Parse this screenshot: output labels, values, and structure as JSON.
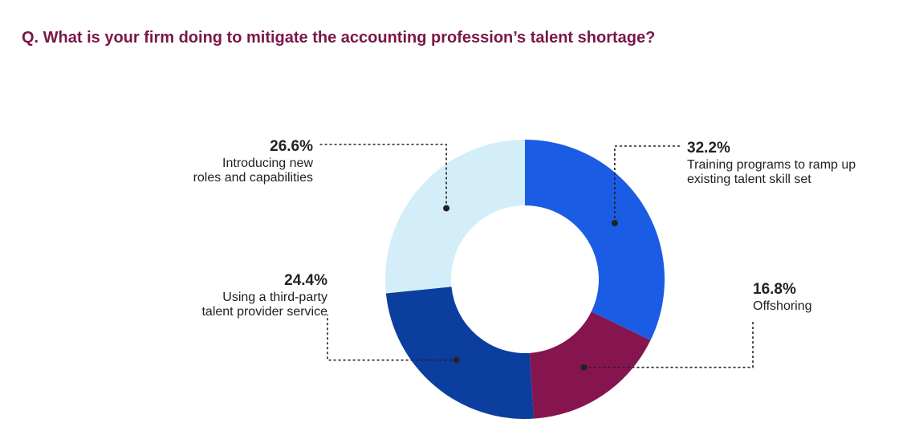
{
  "chart_data": {
    "type": "pie",
    "title": "Q. What is your firm doing to mitigate the accounting profession’s talent shortage?",
    "categories": [
      [
        "Training programs to ramp up",
        "existing talent skill set"
      ],
      [
        "Offshoring"
      ],
      [
        "Using a third-party",
        "talent provider service"
      ],
      [
        "Introducing new",
        "roles and capabilities"
      ]
    ],
    "values": [
      32.2,
      16.8,
      24.4,
      26.6
    ],
    "value_labels": [
      "32.2%",
      "16.8%",
      "24.4%",
      "26.6%"
    ],
    "colors": [
      "#1b5ce5",
      "#86154f",
      "#0b3e9e",
      "#d3eef9"
    ]
  }
}
